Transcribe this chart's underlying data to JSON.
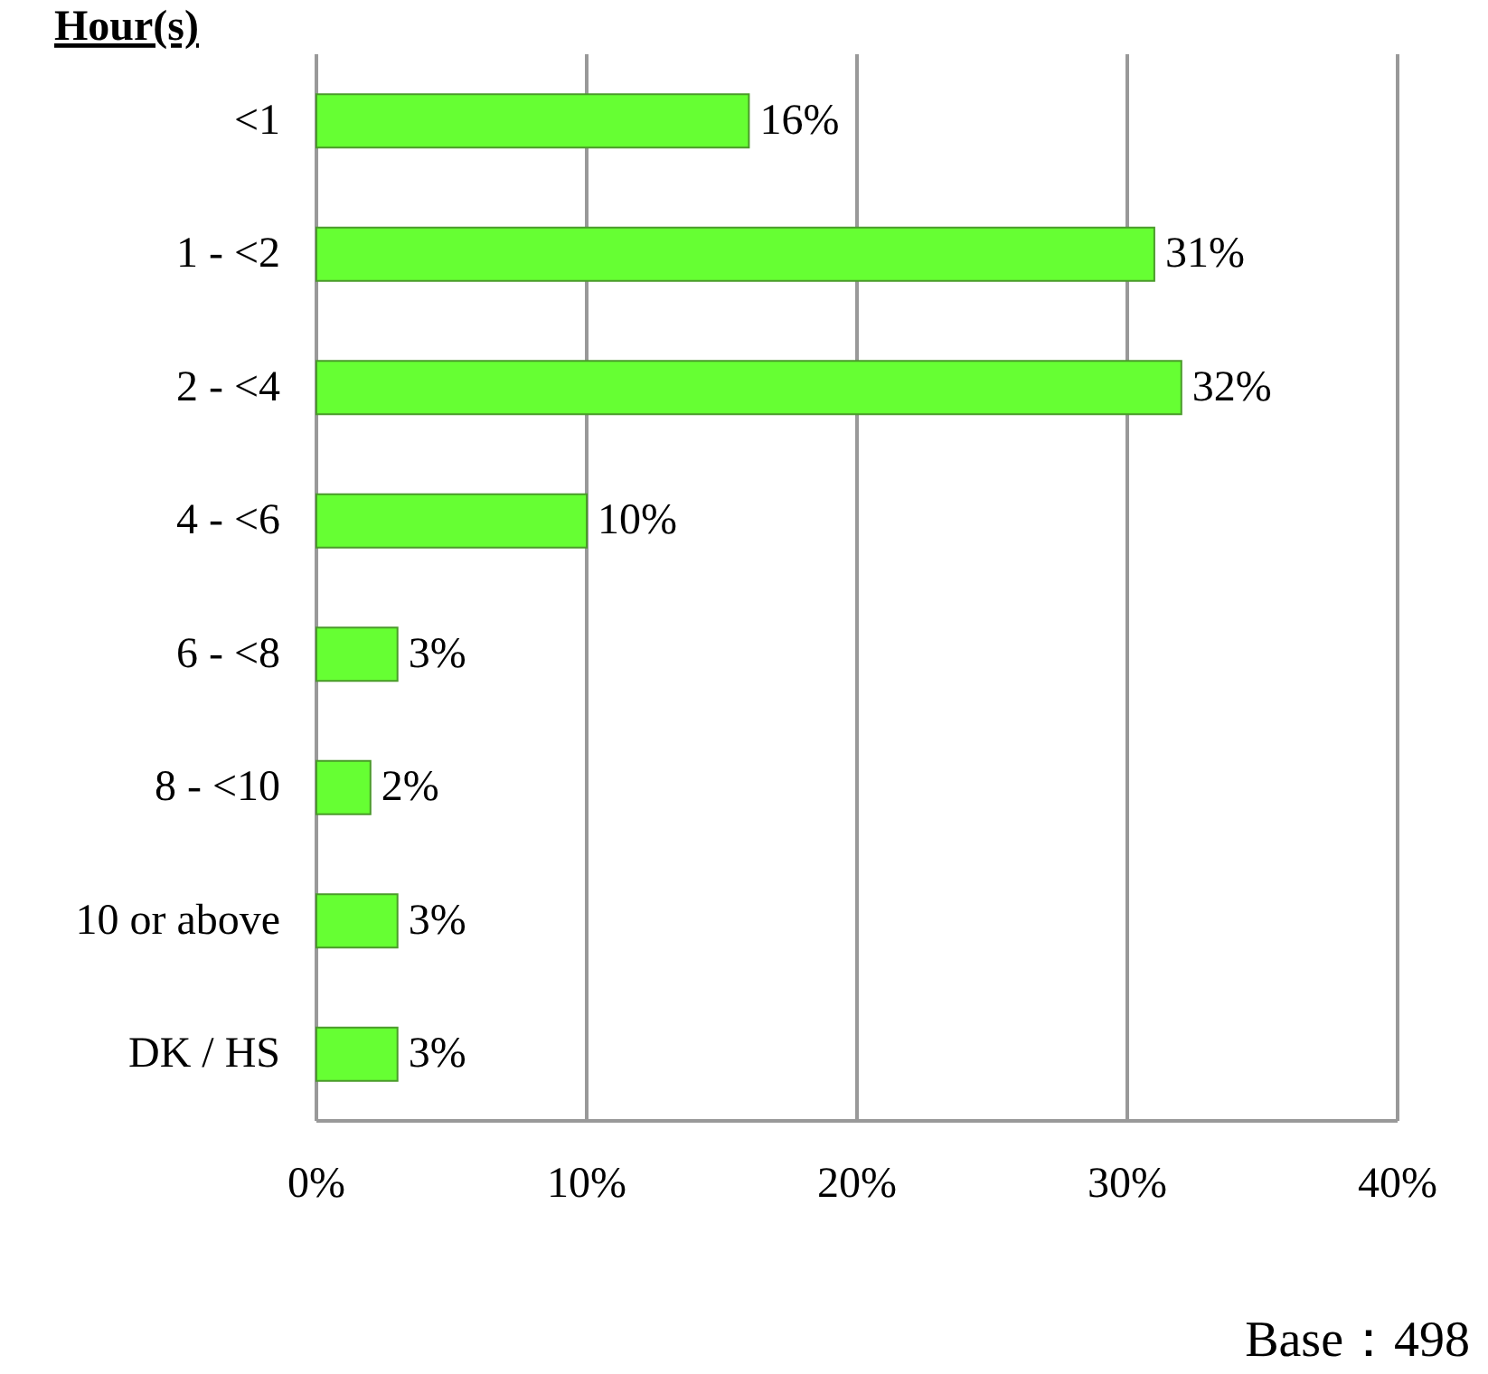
{
  "chart_data": {
    "type": "bar",
    "orientation": "horizontal",
    "ylabel": "Hour(s)",
    "categories": [
      "<1",
      "1 - <2",
      "2 - <4",
      "4 - <6",
      "6 - <8",
      "8 - <10",
      "10 or above",
      "DK / HS"
    ],
    "values": [
      16,
      31,
      32,
      10,
      3,
      2,
      3,
      3
    ],
    "value_labels": [
      "16%",
      "31%",
      "32%",
      "10%",
      "3%",
      "2%",
      "3%",
      "3%"
    ],
    "color": "#66ff33",
    "xlim": [
      0,
      40
    ],
    "xticks": [
      {
        "value": 0,
        "label": "0%"
      },
      {
        "value": 10,
        "label": "10%"
      },
      {
        "value": 20,
        "label": "20%"
      },
      {
        "value": 30,
        "label": "30%"
      },
      {
        "value": 40,
        "label": "40%"
      }
    ],
    "grid": "x",
    "annotations": [
      "Base：498"
    ]
  }
}
